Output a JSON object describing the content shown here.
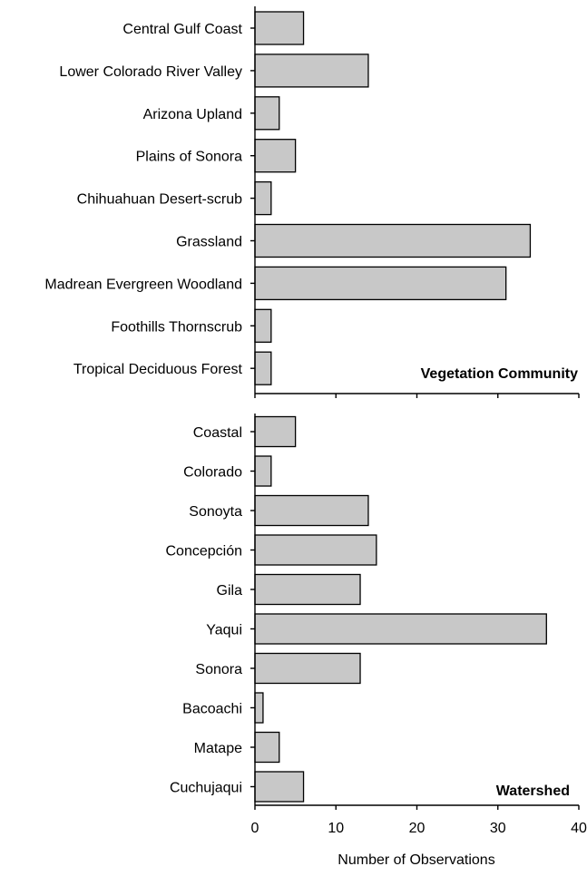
{
  "chart_data": [
    {
      "type": "bar",
      "orientation": "horizontal",
      "title": "Vegetation Community",
      "categories": [
        "Central Gulf Coast",
        "Lower Colorado River Valley",
        "Arizona Upland",
        "Plains of Sonora",
        "Chihuahuan Desert-scrub",
        "Grassland",
        "Madrean Evergreen Woodland",
        "Foothills Thornscrub",
        "Tropical Deciduous Forest"
      ],
      "values": [
        6,
        14,
        3,
        5,
        2,
        34,
        31,
        2,
        2
      ],
      "xlim": [
        0,
        40
      ],
      "bar_color": "#c8c8c8"
    },
    {
      "type": "bar",
      "orientation": "horizontal",
      "title": "Watershed",
      "categories": [
        "Coastal",
        "Colorado",
        "Sonoyta",
        "Concepción",
        "Gila",
        "Yaqui",
        "Sonora",
        "Bacoachi",
        "Matape",
        "Cuchujaqui"
      ],
      "values": [
        5,
        2,
        14,
        15,
        13,
        36,
        13,
        1,
        3,
        6
      ],
      "xlim": [
        0,
        40
      ],
      "xticks": [
        0,
        10,
        20,
        30,
        40
      ],
      "xlabel": "Number of Observations",
      "bar_color": "#c8c8c8"
    }
  ]
}
